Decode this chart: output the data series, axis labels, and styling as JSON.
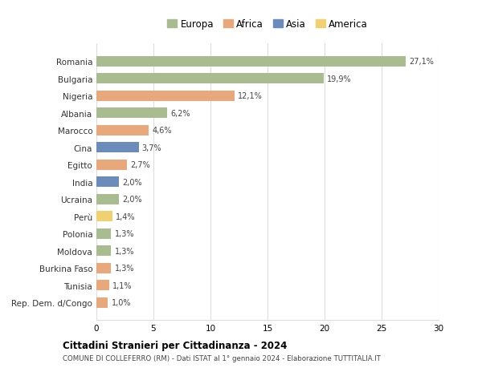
{
  "countries": [
    "Romania",
    "Bulgaria",
    "Nigeria",
    "Albania",
    "Marocco",
    "Cina",
    "Egitto",
    "India",
    "Ucraina",
    "Perù",
    "Polonia",
    "Moldova",
    "Burkina Faso",
    "Tunisia",
    "Rep. Dem. d/Congo"
  ],
  "values": [
    27.1,
    19.9,
    12.1,
    6.2,
    4.6,
    3.7,
    2.7,
    2.0,
    2.0,
    1.4,
    1.3,
    1.3,
    1.3,
    1.1,
    1.0
  ],
  "labels": [
    "27,1%",
    "19,9%",
    "12,1%",
    "6,2%",
    "4,6%",
    "3,7%",
    "2,7%",
    "2,0%",
    "2,0%",
    "1,4%",
    "1,3%",
    "1,3%",
    "1,3%",
    "1,1%",
    "1,0%"
  ],
  "continents": [
    "Europa",
    "Europa",
    "Africa",
    "Europa",
    "Africa",
    "Asia",
    "Africa",
    "Asia",
    "Europa",
    "America",
    "Europa",
    "Europa",
    "Africa",
    "Africa",
    "Africa"
  ],
  "continent_colors": {
    "Europa": "#a8bc8f",
    "Africa": "#e8a87c",
    "Asia": "#6b8cba",
    "America": "#f0d070"
  },
  "legend_order": [
    "Europa",
    "Africa",
    "Asia",
    "America"
  ],
  "title": "Cittadini Stranieri per Cittadinanza - 2024",
  "subtitle": "COMUNE DI COLLEFERRO (RM) - Dati ISTAT al 1° gennaio 2024 - Elaborazione TUTTITALIA.IT",
  "xlim": [
    0,
    30
  ],
  "xticks": [
    0,
    5,
    10,
    15,
    20,
    25,
    30
  ],
  "background_color": "#ffffff",
  "grid_color": "#dddddd",
  "bar_height": 0.6
}
